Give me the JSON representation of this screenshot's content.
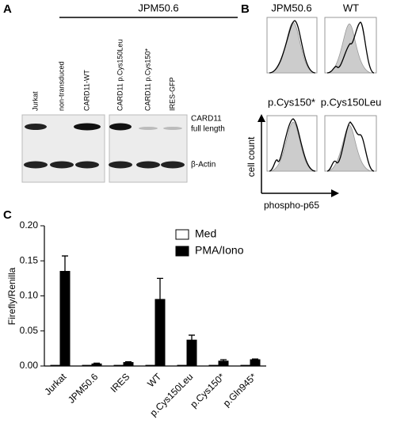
{
  "panel_a": {
    "label": "A",
    "group": "JPM50.6",
    "lanes": [
      "Jurkat",
      "non-transduced",
      "CARD11-WT",
      "CARD11 p.Cys150Leu",
      "CARD11 p.Cys150*",
      "IRES-GFP"
    ],
    "band_labels": [
      "CARD11",
      "full length",
      "β-Actin"
    ]
  },
  "panel_b": {
    "label": "B",
    "titles": [
      "JPM50.6",
      "WT",
      "p.Cys150*",
      "p.Cys150Leu"
    ],
    "y_label": "cell count",
    "x_label": "phospho-p65"
  },
  "panel_c": {
    "label": "C"
  },
  "chart_data": {
    "type": "bar",
    "y_label": "Firefly/Renilla",
    "categories": [
      "Jurkat",
      "JPM50.6",
      "IRES",
      "WT",
      "p.Cys150Leu",
      "p.Cys150*",
      "p.Gln945*"
    ],
    "series": [
      {
        "name": "Med",
        "color": "#ffffff",
        "values": [
          0.001,
          0.001,
          0.001,
          0.001,
          0.001,
          0.001,
          0.001
        ]
      },
      {
        "name": "PMA/Iono",
        "color": "#000000",
        "values": [
          0.135,
          0.003,
          0.005,
          0.095,
          0.037,
          0.007,
          0.009
        ],
        "errors": [
          0.022,
          0.001,
          0.001,
          0.03,
          0.007,
          0.002,
          0.001
        ]
      }
    ],
    "ylim": [
      0,
      0.2
    ],
    "yticks": [
      {
        "value": 0,
        "label": "0.00"
      },
      {
        "value": 0.05,
        "label": "0.05"
      },
      {
        "value": 0.1,
        "label": "0.10"
      },
      {
        "value": 0.15,
        "label": "0.15"
      },
      {
        "value": 0.2,
        "label": "0.20"
      }
    ]
  }
}
